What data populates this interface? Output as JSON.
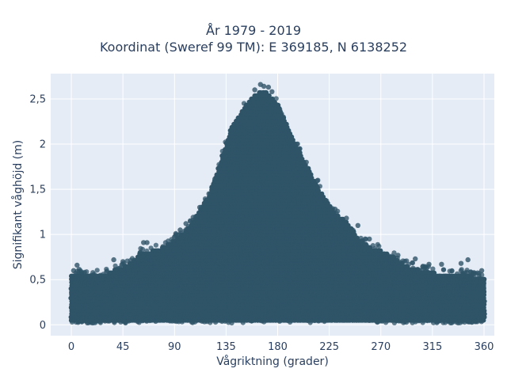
{
  "chart_data": {
    "type": "scatter",
    "title_lines": [
      "År 1979 - 2019",
      "Koordinat (Sweref 99 TM): E 369185, N 6138252"
    ],
    "xlabel": "Vågriktning (grader)",
    "ylabel": "Signifikant våghöjd (m)",
    "xlim": [
      -18,
      369
    ],
    "ylim": [
      -0.12,
      2.78
    ],
    "x_ticks": [
      {
        "value": 0,
        "label": "0"
      },
      {
        "value": 45,
        "label": "45"
      },
      {
        "value": 90,
        "label": "90"
      },
      {
        "value": 135,
        "label": "135"
      },
      {
        "value": 180,
        "label": "180"
      },
      {
        "value": 225,
        "label": "225"
      },
      {
        "value": 270,
        "label": "270"
      },
      {
        "value": 315,
        "label": "315"
      },
      {
        "value": 360,
        "label": "360"
      }
    ],
    "y_ticks": [
      {
        "value": 0,
        "label": "0"
      },
      {
        "value": 0.5,
        "label": "0,5"
      },
      {
        "value": 1,
        "label": "1"
      },
      {
        "value": 1.5,
        "label": "1,5"
      },
      {
        "value": 2,
        "label": "2"
      },
      {
        "value": 2.5,
        "label": "2,5"
      }
    ],
    "grid": true,
    "background_color": "#e5ecf6",
    "marker_color": "#2f5468",
    "series": [
      {
        "upper_envelope": [
          [
            0,
            0.62
          ],
          [
            10,
            0.62
          ],
          [
            20,
            0.6
          ],
          [
            30,
            0.62
          ],
          [
            40,
            0.68
          ],
          [
            50,
            0.72
          ],
          [
            60,
            0.85
          ],
          [
            70,
            0.88
          ],
          [
            80,
            0.92
          ],
          [
            90,
            1.0
          ],
          [
            100,
            1.1
          ],
          [
            110,
            1.28
          ],
          [
            120,
            1.5
          ],
          [
            130,
            1.85
          ],
          [
            140,
            2.25
          ],
          [
            150,
            2.45
          ],
          [
            160,
            2.62
          ],
          [
            170,
            2.65
          ],
          [
            180,
            2.5
          ],
          [
            190,
            2.2
          ],
          [
            200,
            1.95
          ],
          [
            210,
            1.7
          ],
          [
            220,
            1.48
          ],
          [
            230,
            1.3
          ],
          [
            240,
            1.2
          ],
          [
            250,
            1.02
          ],
          [
            260,
            0.92
          ],
          [
            270,
            0.88
          ],
          [
            280,
            0.82
          ],
          [
            290,
            0.72
          ],
          [
            300,
            0.68
          ],
          [
            310,
            0.65
          ],
          [
            320,
            0.63
          ],
          [
            330,
            0.62
          ],
          [
            340,
            0.62
          ],
          [
            350,
            0.6
          ],
          [
            360,
            0.58
          ]
        ],
        "lower_bound": 0.02,
        "dense_band": [
          0.1,
          0.45
        ],
        "outliers": [
          [
            160,
            2.6
          ],
          [
            165,
            2.66
          ],
          [
            168,
            2.64
          ],
          [
            172,
            2.63
          ],
          [
            175,
            2.58
          ],
          [
            158,
            2.5
          ],
          [
            178,
            2.45
          ],
          [
            185,
            2.3
          ],
          [
            190,
            2.1
          ],
          [
            195,
            2.0
          ],
          [
            150,
            2.35
          ],
          [
            145,
            2.2
          ],
          [
            63,
            0.91
          ],
          [
            66,
            0.91
          ],
          [
            60,
            0.8
          ],
          [
            45,
            0.7
          ],
          [
            37,
            0.72
          ],
          [
            5,
            0.66
          ],
          [
            2,
            0.6
          ],
          [
            285,
            0.77
          ],
          [
            300,
            0.73
          ],
          [
            312,
            0.67
          ],
          [
            323,
            0.67
          ],
          [
            340,
            0.68
          ],
          [
            346,
            0.72
          ],
          [
            358,
            0.6
          ],
          [
            250,
            1.1
          ],
          [
            240,
            1.18
          ],
          [
            230,
            1.28
          ],
          [
            260,
            0.95
          ],
          [
            205,
            1.8
          ],
          [
            215,
            1.6
          ],
          [
            120,
            1.45
          ],
          [
            112,
            1.3
          ],
          [
            100,
            1.12
          ],
          [
            95,
            1.05
          ]
        ]
      }
    ]
  }
}
